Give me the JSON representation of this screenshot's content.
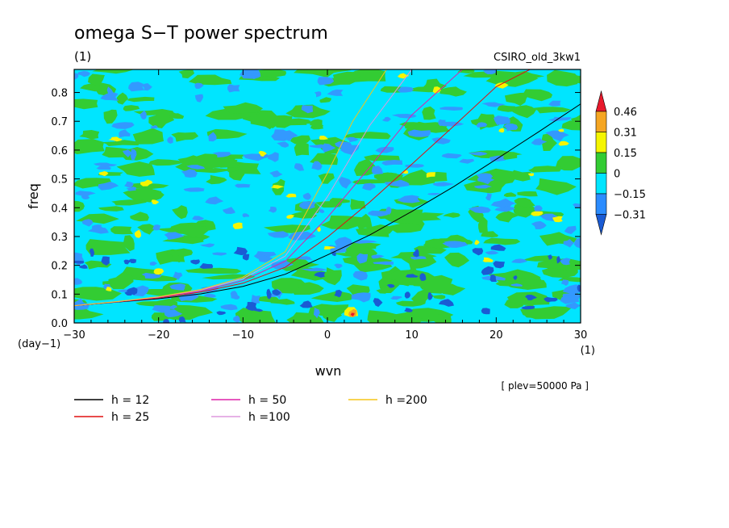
{
  "chart_data": {
    "type": "heatmap",
    "title": "omega S−T power spectrum",
    "subtitle": "(1)",
    "model_label": "CSIRO_old_3kw1",
    "xlabel": "wvn",
    "ylabel": "freq",
    "x_unit": "(1)",
    "y_unit": "(day−1)",
    "xlim": [
      -30,
      30
    ],
    "ylim": [
      0,
      0.88
    ],
    "x_ticks": [
      "−30",
      "−20",
      "−10",
      "0",
      "10",
      "20",
      "30"
    ],
    "x_tick_values": [
      -30,
      -20,
      -10,
      0,
      10,
      20,
      30
    ],
    "y_ticks": [
      "0.0",
      "0.1",
      "0.2",
      "0.3",
      "0.4",
      "0.5",
      "0.6",
      "0.7",
      "0.8"
    ],
    "y_tick_values": [
      0,
      0.1,
      0.2,
      0.3,
      0.4,
      0.5,
      0.6,
      0.7,
      0.8
    ],
    "level_note": "[ plev=50000 Pa ]",
    "grid": false,
    "colorbar": {
      "labels": [
        "0.46",
        "0.31",
        "0.15",
        "0",
        "−0.15",
        "−0.31"
      ],
      "levels": [
        0.46,
        0.31,
        0.15,
        0,
        -0.15,
        -0.31
      ],
      "colors": [
        "#e8192c",
        "#f5a623",
        "#f5f500",
        "#33cc33",
        "#00e5ff",
        "#2b8cff",
        "#1a5bd4"
      ],
      "placement": "right"
    },
    "field_colors": {
      "very_low": "#1a5bd4",
      "low": "#3399ff",
      "background": "#00e5ff",
      "mid": "#33cc33",
      "high": "#f5f500",
      "higher": "#f5a623",
      "peak": "#e8192c"
    },
    "series": [
      {
        "name": "h = 12",
        "color": "#000000",
        "x": [
          -30,
          -25,
          -20,
          -15,
          -10,
          -5,
          0,
          5,
          10,
          15,
          20,
          25,
          30
        ],
        "y": [
          0.06,
          0.072,
          0.084,
          0.101,
          0.127,
          0.169,
          0.236,
          0.305,
          0.387,
          0.474,
          0.568,
          0.663,
          0.76
        ]
      },
      {
        "name": "h = 25",
        "color": "#e01010",
        "x": [
          -30,
          -25,
          -20,
          -15,
          -10,
          -5,
          0,
          5,
          10,
          15,
          20,
          24
        ],
        "y": [
          0.06,
          0.073,
          0.087,
          0.107,
          0.138,
          0.193,
          0.298,
          0.419,
          0.551,
          0.684,
          0.82,
          0.88
        ]
      },
      {
        "name": "h = 50",
        "color": "#dd22aa",
        "x": [
          -30,
          -25,
          -20,
          -15,
          -10,
          -5,
          0,
          5,
          10,
          16
        ],
        "y": [
          0.06,
          0.073,
          0.089,
          0.111,
          0.147,
          0.214,
          0.366,
          0.54,
          0.722,
          0.88
        ]
      },
      {
        "name": "h =100",
        "color": "#dd99dd",
        "x": [
          -30,
          -25,
          -20,
          -15,
          -10,
          -5,
          0,
          5,
          10
        ],
        "y": [
          0.06,
          0.074,
          0.09,
          0.114,
          0.154,
          0.232,
          0.438,
          0.685,
          0.88
        ]
      },
      {
        "name": "h =200",
        "color": "#f5c518",
        "x": [
          -30,
          -25,
          -20,
          -15,
          -10,
          -5,
          0,
          3,
          7
        ],
        "y": [
          0.06,
          0.074,
          0.091,
          0.116,
          0.159,
          0.247,
          0.52,
          0.7,
          0.88
        ]
      }
    ],
    "legend_placement": "bottom"
  }
}
